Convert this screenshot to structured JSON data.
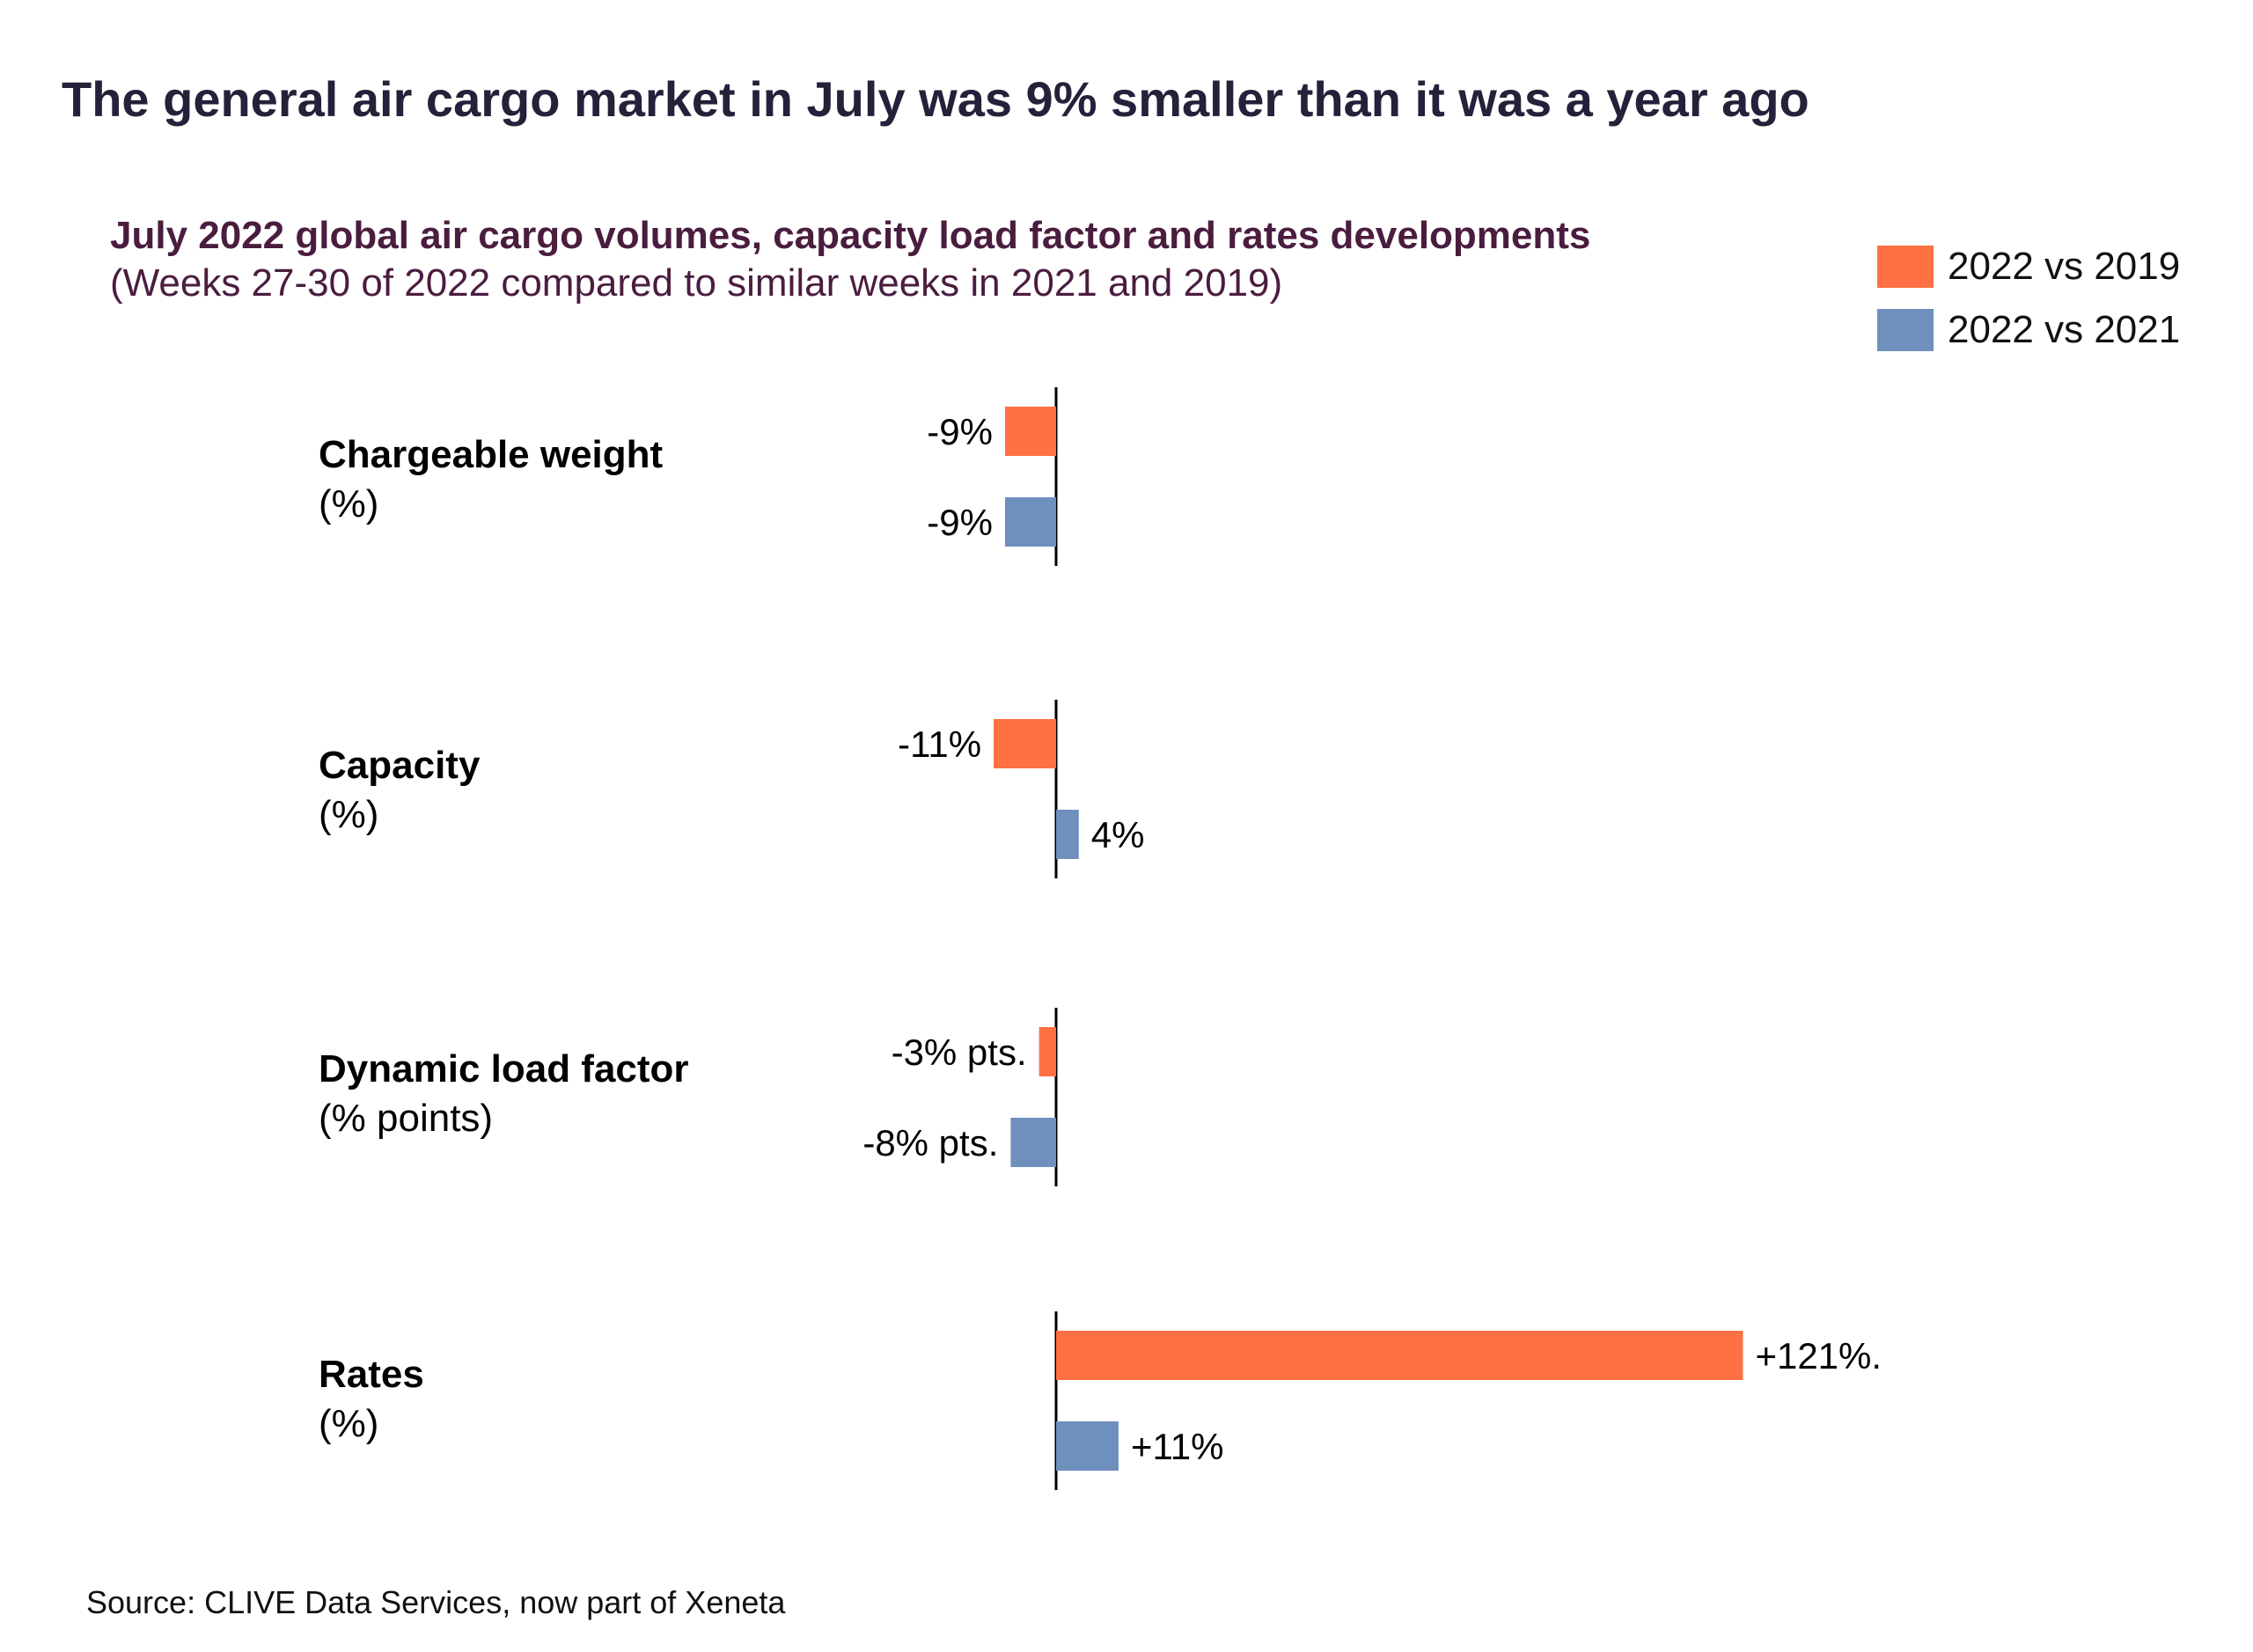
{
  "title": "The general air cargo market in July was 9% smaller than it was a year ago",
  "subtitle": "July 2022 global air cargo volumes, capacity load factor and rates developments",
  "subtitle_note": "(Weeks 27-30 of 2022 compared to similar weeks in 2021 and 2019)",
  "source": "Source: CLIVE Data Services, now part of Xeneta",
  "colors": {
    "series_2019": "#ff7043",
    "series_2021": "#6f8fbd",
    "axis": "#000000"
  },
  "legend": [
    {
      "label": "2022 vs 2019"
    },
    {
      "label": "2022 vs 2021"
    }
  ],
  "chart_data": {
    "type": "bar",
    "orientation": "horizontal",
    "categories": [
      {
        "name": "Chargeable weight",
        "unit": "(%)"
      },
      {
        "name": "Capacity",
        "unit": "(%)"
      },
      {
        "name": "Dynamic load factor",
        "unit": "(% points)"
      },
      {
        "name": "Rates",
        "unit": "(%)"
      }
    ],
    "series": [
      {
        "name": "2022 vs 2019",
        "values": [
          -9,
          -11,
          -3,
          121
        ],
        "labels": [
          "-9%",
          "-11%",
          "-3% pts.",
          "+121%."
        ]
      },
      {
        "name": "2022 vs 2021",
        "values": [
          -9,
          4,
          -8,
          11
        ],
        "labels": [
          "-9%",
          "4%",
          "-8% pts.",
          "+11%"
        ]
      }
    ],
    "legend_position": "top-right",
    "grid": false
  }
}
